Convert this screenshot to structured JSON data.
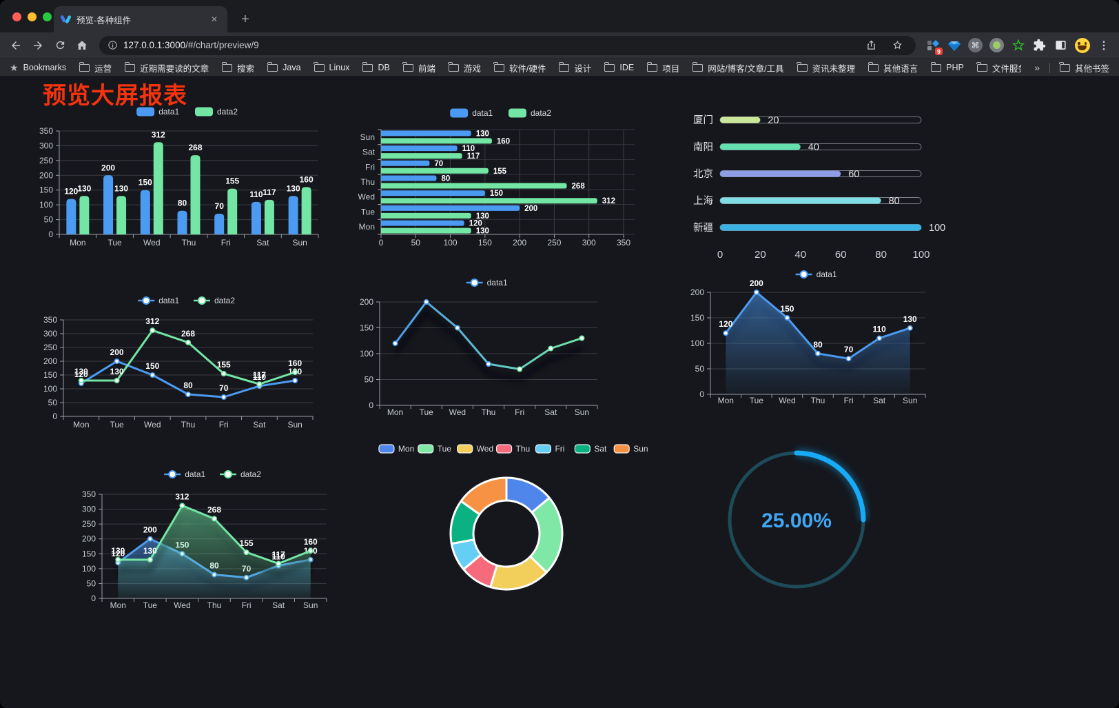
{
  "browser": {
    "tab_title": "预览-各种组件",
    "tab_close_glyph": "✕",
    "new_tab_glyph": "+",
    "url_host": "127.0.0.1:3000",
    "url_path": "/#/chart/preview/9",
    "bookmarks_label": "Bookmarks",
    "bookmarks_star_glyph": "★",
    "bookmarks": [
      "运营",
      "近期需要读的文章",
      "搜索",
      "Java",
      "Linux",
      "DB",
      "前端",
      "游戏",
      "软件/硬件",
      "设计",
      "IDE",
      "项目",
      "网站/博客/文章/工具",
      "资讯未整理",
      "其他语言",
      "PHP",
      "文件服务器"
    ],
    "overflow_chevron": "»",
    "other_bookmarks": "其他书签",
    "extension_badge": "9",
    "cmd_glyph": "⌘",
    "gem_glyph": "◆"
  },
  "page": {
    "title": "预览大屏报表",
    "title_color": "#f5330e",
    "background": "#15171c"
  },
  "chart_data": [
    {
      "id": "bar-grouped",
      "type": "bar",
      "categories": [
        "Mon",
        "Tue",
        "Wed",
        "Thu",
        "Fri",
        "Sat",
        "Sun"
      ],
      "series": [
        {
          "name": "data1",
          "color": "#4C9BF2",
          "values": [
            120,
            200,
            150,
            80,
            70,
            110,
            130
          ]
        },
        {
          "name": "data2",
          "color": "#73E6A5",
          "values": [
            130,
            130,
            312,
            268,
            155,
            117,
            160
          ]
        }
      ],
      "ylim": [
        0,
        350
      ],
      "yticks": [
        0,
        50,
        100,
        150,
        200,
        250,
        300,
        350
      ],
      "legend_position": "top",
      "show_labels": true
    },
    {
      "id": "bar-horizontal",
      "type": "hbar",
      "categories": [
        "Mon",
        "Tue",
        "Wed",
        "Thu",
        "Fri",
        "Sat",
        "Sun"
      ],
      "displayed_top_to_bottom": [
        "Sun",
        "Sat",
        "Fri",
        "Thu",
        "Wed",
        "Tue",
        "Mon"
      ],
      "series": [
        {
          "name": "data1",
          "color": "#4C9BF2",
          "values": [
            120,
            200,
            150,
            80,
            70,
            110,
            130
          ]
        },
        {
          "name": "data2",
          "color": "#73E6A5",
          "values": [
            130,
            130,
            312,
            268,
            155,
            117,
            160
          ]
        }
      ],
      "xlim": [
        0,
        350
      ],
      "xticks": [
        0,
        50,
        100,
        150,
        200,
        250,
        300,
        350
      ],
      "legend_position": "top",
      "show_labels": true
    },
    {
      "id": "progress-list",
      "type": "progress",
      "max": 100,
      "items": [
        {
          "label": "厦门",
          "value": 20,
          "color": "#CBE89A"
        },
        {
          "label": "南阳",
          "value": 40,
          "color": "#64DFAE"
        },
        {
          "label": "北京",
          "value": 60,
          "color": "#8F9CE6"
        },
        {
          "label": "上海",
          "value": 80,
          "color": "#7FDDE6"
        },
        {
          "label": "新疆",
          "value": 100,
          "color": "#39B2E4"
        }
      ],
      "xticks": [
        0,
        20,
        40,
        60,
        80,
        100
      ]
    },
    {
      "id": "line-two-series",
      "type": "line",
      "categories": [
        "Mon",
        "Tue",
        "Wed",
        "Thu",
        "Fri",
        "Sat",
        "Sun"
      ],
      "series": [
        {
          "name": "data1",
          "color": "#4C9BF2",
          "values": [
            120,
            200,
            150,
            80,
            70,
            110,
            130
          ]
        },
        {
          "name": "data2",
          "color": "#73E6A5",
          "values": [
            130,
            130,
            312,
            268,
            155,
            117,
            160
          ]
        }
      ],
      "ylim": [
        0,
        350
      ],
      "yticks": [
        0,
        50,
        100,
        150,
        200,
        250,
        300,
        350
      ],
      "legend_position": "top",
      "show_labels": true,
      "shadow": false
    },
    {
      "id": "line-gradient",
      "type": "line",
      "categories": [
        "Mon",
        "Tue",
        "Wed",
        "Thu",
        "Fri",
        "Sat",
        "Sun"
      ],
      "series": [
        {
          "name": "data1",
          "color": "#4C9BF2",
          "gradient": [
            "#4C9BF2",
            "#73E6A5"
          ],
          "values": [
            120,
            200,
            150,
            80,
            70,
            110,
            130
          ]
        }
      ],
      "ylim": [
        0,
        200
      ],
      "yticks": [
        0,
        50,
        100,
        150,
        200
      ],
      "legend_position": "top",
      "show_labels": false,
      "shadow": true
    },
    {
      "id": "area-single",
      "type": "line",
      "categories": [
        "Mon",
        "Tue",
        "Wed",
        "Thu",
        "Fri",
        "Sat",
        "Sun"
      ],
      "series": [
        {
          "name": "data1",
          "color": "#4C9BF2",
          "area": true,
          "values": [
            120,
            200,
            150,
            80,
            70,
            110,
            130
          ]
        }
      ],
      "ylim": [
        0,
        200
      ],
      "yticks": [
        0,
        50,
        100,
        150,
        200
      ],
      "legend_position": "top",
      "show_labels": true,
      "shadow": true
    },
    {
      "id": "area-two-series",
      "type": "line",
      "categories": [
        "Mon",
        "Tue",
        "Wed",
        "Thu",
        "Fri",
        "Sat",
        "Sun"
      ],
      "series": [
        {
          "name": "data1",
          "color": "#4C9BF2",
          "area": true,
          "values": [
            120,
            200,
            150,
            80,
            70,
            110,
            130
          ]
        },
        {
          "name": "data2",
          "color": "#73E6A5",
          "area": true,
          "values": [
            130,
            130,
            312,
            268,
            155,
            117,
            160
          ]
        }
      ],
      "ylim": [
        0,
        350
      ],
      "yticks": [
        0,
        50,
        100,
        150,
        200,
        250,
        300,
        350
      ],
      "legend_position": "top",
      "show_labels": true,
      "shadow": true
    },
    {
      "id": "donut",
      "type": "pie",
      "inner_radius_ratio": 0.59,
      "legend_position": "top",
      "items": [
        {
          "label": "Mon",
          "value": 120,
          "color": "#4E86EC"
        },
        {
          "label": "Tue",
          "value": 200,
          "color": "#7FE8A6"
        },
        {
          "label": "Wed",
          "value": 150,
          "color": "#F2CE5A"
        },
        {
          "label": "Thu",
          "value": 80,
          "color": "#F56B7B"
        },
        {
          "label": "Fri",
          "value": 70,
          "color": "#64CEF5"
        },
        {
          "label": "Sat",
          "value": 110,
          "color": "#0BB181"
        },
        {
          "label": "Sun",
          "value": 130,
          "color": "#F79244"
        }
      ]
    },
    {
      "id": "gauge",
      "type": "gauge",
      "value": 25,
      "display": "25.00%",
      "color": "#17ABF7",
      "track_color": "#1E4B59",
      "text_color": "#41A7F3"
    }
  ]
}
